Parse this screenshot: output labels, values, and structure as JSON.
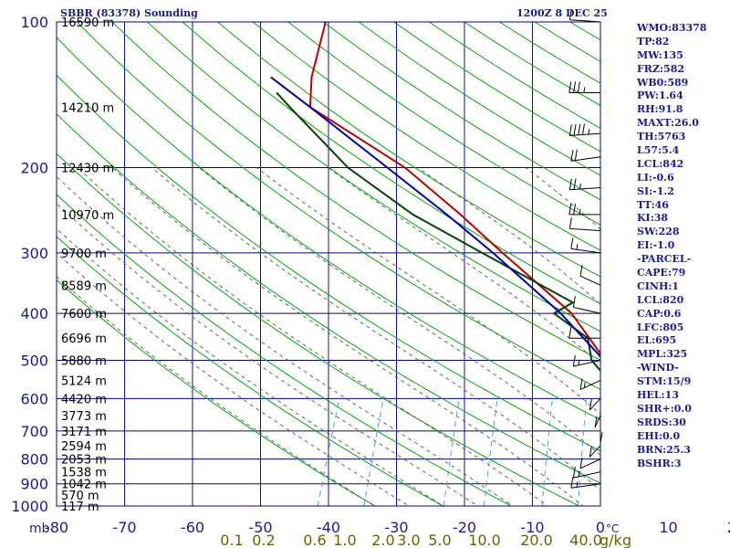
{
  "header": {
    "title": "SBBR (83378) Sounding",
    "timestamp": "1200Z  8 DEC 25"
  },
  "indices": [
    "WMO:83378",
    "TP:82",
    "MW:135",
    "FRZ:582",
    "WB0:589",
    "PW:1.64",
    "RH:91.8",
    "MAXT:26.0",
    "TH:5763",
    "L57:5.4",
    "LCL:842",
    "LI:-0.6",
    "SI:-1.2",
    "TT:46",
    "KI:38",
    "SW:228",
    "EI:-1.0",
    "-PARCEL-",
    "CAPE:79",
    "CINH:1",
    "LCL:820",
    "CAP:0.6",
    "LFC:805",
    "EL:695",
    "MPL:325",
    "-WIND-",
    "STM:15/9",
    "HEL:13",
    "SHR+:0.0",
    "SRDS:30",
    "EHI:0.0",
    "BRN:25.3",
    "BSHR:3"
  ],
  "colors": {
    "frame": "#00008b",
    "isotherm": "#1010a0",
    "dry_adiabat": "#00aa00",
    "moist_adiabat": "#555555",
    "mixing_ratio": "#3399dd",
    "temperature": "#bb0000",
    "dewpoint": "#004400",
    "parcel": "#0000aa",
    "axis_text": "#1a1aa0",
    "height_text": "#000000",
    "mixratio_text": "#666600"
  },
  "chart_data": {
    "type": "skew-t",
    "xlabel": "°C",
    "ylabel": "mb",
    "xlim": [
      -80,
      0
    ],
    "ylim": [
      1000,
      100
    ],
    "x_ticks": [
      -80,
      -70,
      -60,
      -50,
      -40,
      -30,
      -20,
      -10,
      0,
      10,
      20,
      30,
      40
    ],
    "x_tick_labels": [
      "-80",
      "-70",
      "-60",
      "-50",
      "-40",
      "-30",
      "-20",
      "-10",
      "0",
      "10",
      "20",
      "30",
      "40"
    ],
    "pressure_ticks": [
      100,
      200,
      300,
      400,
      500,
      600,
      700,
      800,
      900,
      1000
    ],
    "pressure_tick_labels": [
      "100",
      "200",
      "300",
      "400",
      "500",
      "600",
      "700",
      "800",
      "900",
      "1000"
    ],
    "heights": [
      {
        "p": 100,
        "label": "16590 m"
      },
      {
        "p": 150,
        "label": "14210 m"
      },
      {
        "p": 200,
        "label": "12430 m"
      },
      {
        "p": 250,
        "label": "10970 m"
      },
      {
        "p": 300,
        "label": "9700 m"
      },
      {
        "p": 350,
        "label": "8589 m"
      },
      {
        "p": 400,
        "label": "7600 m"
      },
      {
        "p": 450,
        "label": "6696 m"
      },
      {
        "p": 500,
        "label": "5880 m"
      },
      {
        "p": 550,
        "label": "5124 m"
      },
      {
        "p": 600,
        "label": "4420 m"
      },
      {
        "p": 650,
        "label": "3773 m"
      },
      {
        "p": 700,
        "label": "3171 m"
      },
      {
        "p": 750,
        "label": "2594 m"
      },
      {
        "p": 800,
        "label": "2053 m"
      },
      {
        "p": 850,
        "label": "1538 m"
      },
      {
        "p": 900,
        "label": "1042 m"
      },
      {
        "p": 950,
        "label": "570 m"
      },
      {
        "p": 1000,
        "label": "117 m"
      }
    ],
    "mixing_ratio_labels": [
      "0.1",
      "0.2",
      "0.6",
      "1.0",
      "2.0",
      "3.0",
      "5.0",
      "10.0",
      "20.0",
      "40.0"
    ],
    "mixing_ratio_unit": "g/kg",
    "mixing_ratio_values": [
      0.1,
      0.2,
      0.6,
      1.0,
      2.0,
      3.0,
      5.0,
      10.0,
      20.0,
      40.0
    ],
    "series": [
      {
        "name": "temperature",
        "p": [
          900,
          880,
          850,
          800,
          700,
          600,
          500,
          400,
          300,
          250,
          200,
          150,
          130,
          100
        ],
        "t": [
          21.4,
          18.2,
          15.0,
          11.0,
          3.2,
          -3.6,
          -10.0,
          -18.4,
          -33.0,
          -42.0,
          -53.6,
          -72.0,
          -74.0,
          -76.0
        ]
      },
      {
        "name": "dewpoint",
        "p": [
          900,
          870,
          850,
          815,
          800,
          700,
          600,
          500,
          450,
          400,
          380,
          300,
          250,
          200,
          150,
          140
        ],
        "t": [
          17.8,
          16.8,
          14.8,
          12.0,
          12.6,
          2.2,
          -4.4,
          -12.0,
          -14.2,
          -21.0,
          -19.0,
          -36.0,
          -49.0,
          -62.0,
          -75.0,
          -78.0
        ]
      },
      {
        "name": "parcel",
        "p": [
          900,
          850,
          800,
          700,
          600,
          500,
          400,
          300,
          250,
          200,
          150,
          130
        ],
        "t": [
          21.4,
          16.0,
          11.6,
          3.8,
          -3.0,
          -10.2,
          -20.0,
          -34.4,
          -44.0,
          -56.2,
          -72.0,
          -80.0
        ]
      }
    ],
    "wind_profile": [
      {
        "p": 100,
        "dir": 80,
        "kt": 10
      },
      {
        "p": 140,
        "dir": 90,
        "kt": 25
      },
      {
        "p": 170,
        "dir": 100,
        "kt": 35
      },
      {
        "p": 190,
        "dir": 110,
        "kt": 20
      },
      {
        "p": 220,
        "dir": 100,
        "kt": 15
      },
      {
        "p": 250,
        "dir": 90,
        "kt": 15
      },
      {
        "p": 270,
        "dir": 80,
        "kt": 10
      },
      {
        "p": 300,
        "dir": 70,
        "kt": 5
      },
      {
        "p": 350,
        "dir": 40,
        "kt": 10
      },
      {
        "p": 400,
        "dir": 60,
        "kt": 10
      },
      {
        "p": 450,
        "dir": 90,
        "kt": 10
      },
      {
        "p": 500,
        "dir": 120,
        "kt": 5
      },
      {
        "p": 550,
        "dir": 140,
        "kt": 5
      },
      {
        "p": 600,
        "dir": 160,
        "kt": 10
      },
      {
        "p": 650,
        "dir": 170,
        "kt": 10
      },
      {
        "p": 700,
        "dir": 180,
        "kt": 10
      },
      {
        "p": 750,
        "dir": 200,
        "kt": 10
      },
      {
        "p": 800,
        "dir": 220,
        "kt": 10
      },
      {
        "p": 850,
        "dir": 240,
        "kt": 5
      },
      {
        "p": 900,
        "dir": 250,
        "kt": 5
      }
    ]
  }
}
